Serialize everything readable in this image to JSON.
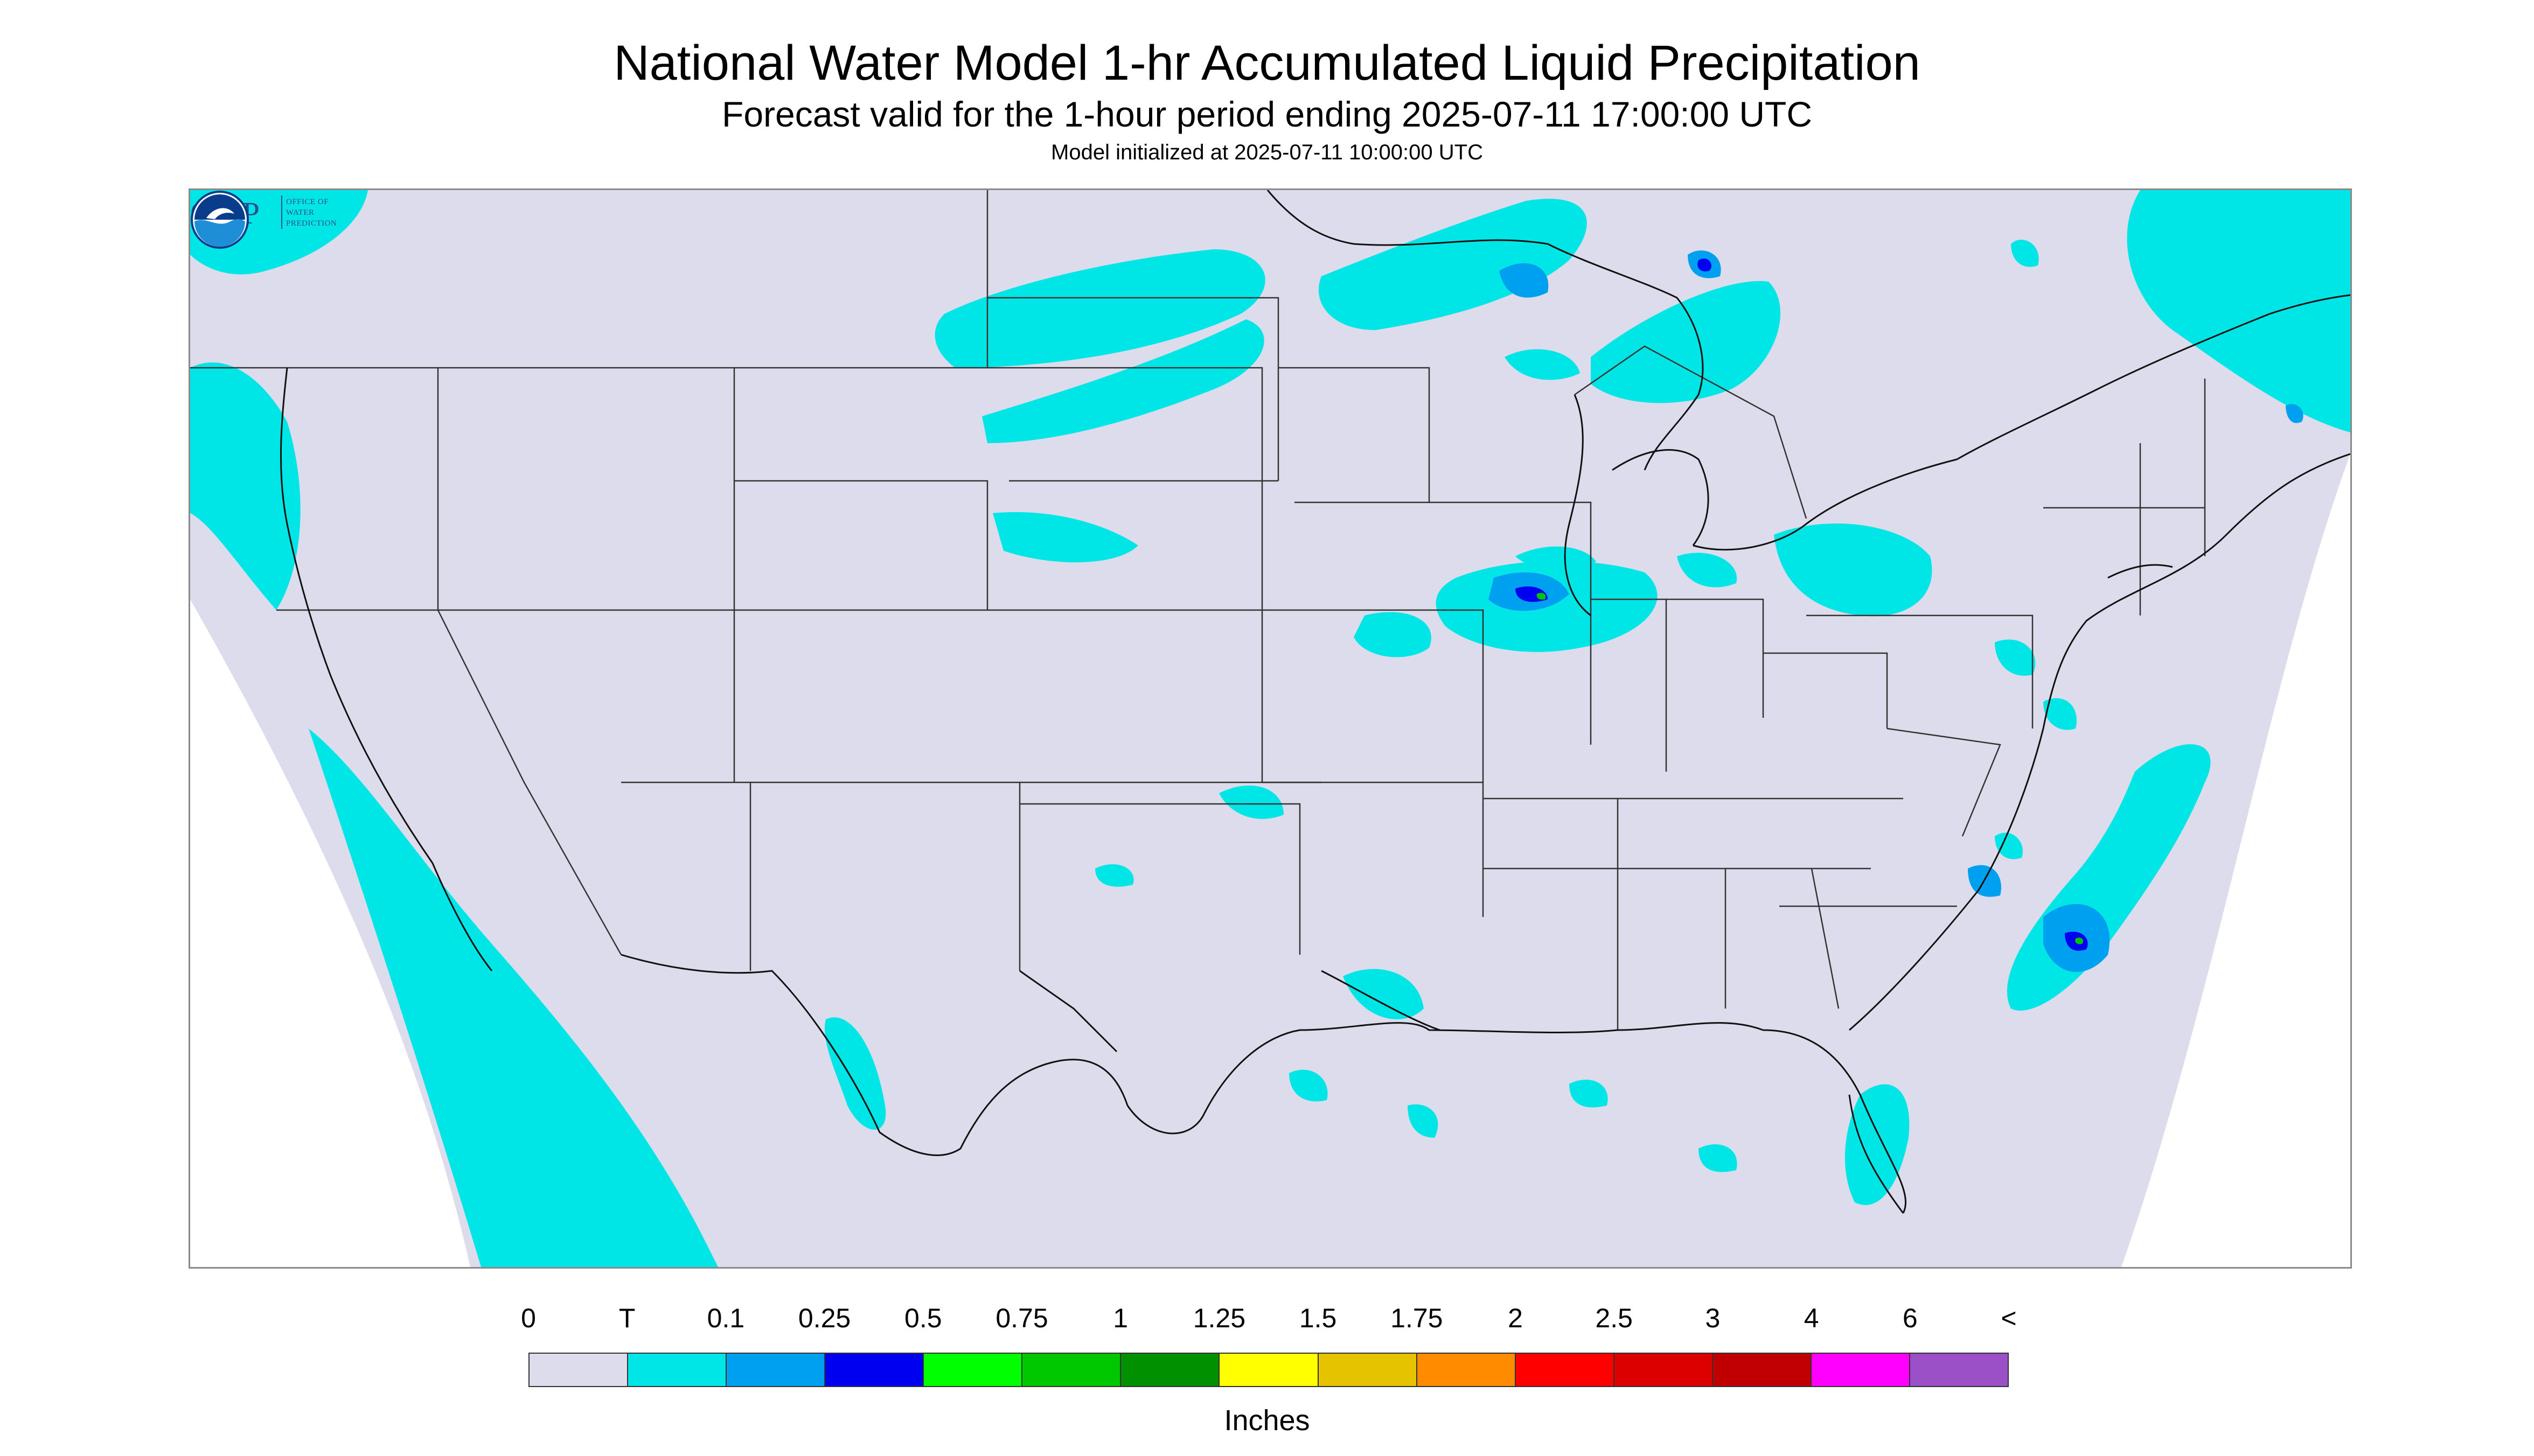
{
  "header": {
    "title": "National Water Model 1-hr Accumulated Liquid Precipitation",
    "subtitle": "Forecast valid for the 1-hour period ending 2025-07-11 17:00:00 UTC",
    "init": "Model initialized at 2025-07-11 10:00:00 UTC"
  },
  "map": {
    "background_color": "#dcdcec",
    "outside_color": "#ffffff",
    "boundary_color": "#333333"
  },
  "logos": {
    "owp_mark": "OWP",
    "owp_line1": "OFFICE OF",
    "owp_line2": "WATER",
    "owp_line3": "PREDICTION",
    "noaa_icon": "noaa-logo-icon"
  },
  "legend": {
    "labels": [
      "0",
      "T",
      "0.1",
      "0.25",
      "0.5",
      "0.75",
      "1",
      "1.25",
      "1.5",
      "1.75",
      "2",
      "2.5",
      "3",
      "4",
      "6",
      "<"
    ],
    "colors": [
      "#dcdcec",
      "#00e5e5",
      "#00a0f0",
      "#0000f0",
      "#00ff00",
      "#00c800",
      "#009000",
      "#ffff00",
      "#e6c300",
      "#ff8c00",
      "#ff0000",
      "#dc0000",
      "#c00000",
      "#ff00ff",
      "#9b50c8"
    ],
    "units": "Inches"
  }
}
